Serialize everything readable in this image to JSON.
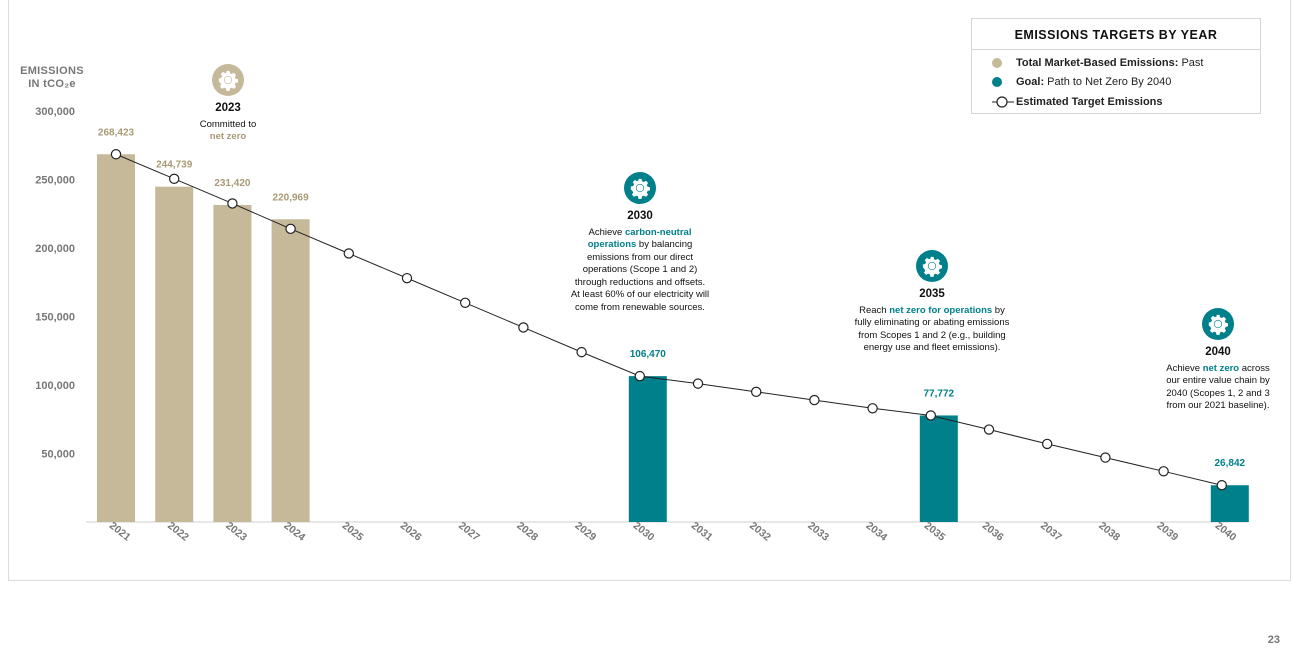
{
  "chart_data": {
    "type": "bar",
    "x": [
      "2021",
      "2022",
      "2023",
      "2024",
      "2025",
      "2026",
      "2027",
      "2028",
      "2029",
      "2030",
      "2031",
      "2032",
      "2033",
      "2034",
      "2035",
      "2036",
      "2037",
      "2038",
      "2039",
      "2040"
    ],
    "ylim": [
      0,
      300000
    ],
    "yticks": [
      50000,
      100000,
      150000,
      200000,
      250000,
      300000
    ],
    "ytick_labels": [
      "50,000",
      "100,000",
      "150,000",
      "200,000",
      "250,000",
      "300,000"
    ],
    "ylabel_line1": "EMISSIONS",
    "ylabel_line2": "IN tCO₂e",
    "bars": [
      {
        "x": "2021",
        "value": 268423,
        "label": "268,423",
        "series": "past"
      },
      {
        "x": "2022",
        "value": 244739,
        "label": "244,739",
        "series": "past"
      },
      {
        "x": "2023",
        "value": 231420,
        "label": "231,420",
        "series": "past"
      },
      {
        "x": "2024",
        "value": 220969,
        "label": "220,969",
        "series": "past"
      },
      {
        "x": "2030",
        "value": 106470,
        "label": "106,470",
        "series": "goal"
      },
      {
        "x": "2035",
        "value": 77772,
        "label": "77,772",
        "series": "goal"
      },
      {
        "x": "2040",
        "value": 26842,
        "label": "26,842",
        "series": "goal"
      }
    ],
    "line": {
      "name": "Estimated Target Emissions",
      "values": [
        268423,
        250500,
        232500,
        214000,
        196000,
        178000,
        160000,
        142000,
        124000,
        106470,
        101000,
        95000,
        89000,
        83000,
        77772,
        67500,
        57000,
        47000,
        37000,
        26842
      ]
    },
    "legend": {
      "title": "EMISSIONS TARGETS BY YEAR",
      "items": [
        {
          "bold": "Total Market-Based Emissions:",
          "rest": " Past",
          "marker": "dot",
          "color": "#c5b99a"
        },
        {
          "bold": "Goal:",
          "rest": " Path to Net Zero By 2040",
          "marker": "dot",
          "color": "#00808a"
        },
        {
          "bold": "Estimated Target Emissions",
          "rest": "",
          "marker": "line-circle",
          "color": "#222222"
        }
      ]
    },
    "colors": {
      "past": "#c5b99a",
      "goal": "#00808a",
      "past_label": "#a89a74",
      "goal_label": "#00808a",
      "axis_text": "#777777"
    }
  },
  "milestones": {
    "m2023": {
      "year": "2023",
      "l1": "Committed to",
      "hl": "net zero",
      "icon": "gear-icon",
      "color": "#c5b99a"
    },
    "m2030": {
      "year": "2030",
      "pre": "Achieve ",
      "hl": "carbon-neutral operations",
      "post": " by balancing emissions from our direct operations (Scope 1 and 2) through reductions and offsets. At least 60% of our electricity will come from renewable sources.",
      "icon": "gear-icon",
      "color": "#00808a"
    },
    "m2035": {
      "year": "2035",
      "pre": "Reach ",
      "hl": "net zero for operations",
      "post": " by fully eliminating or abating emissions from Scopes 1 and 2 (e.g., building energy use and fleet emissions).",
      "icon": "gear-icon",
      "color": "#00808a"
    },
    "m2040": {
      "year": "2040",
      "pre": "Achieve ",
      "hl": "net zero",
      "post": " across our entire value chain by 2040 (Scopes 1, 2 and 3 from our 2021 baseline).",
      "icon": "gear-icon",
      "color": "#00808a"
    }
  },
  "page_number": "23"
}
